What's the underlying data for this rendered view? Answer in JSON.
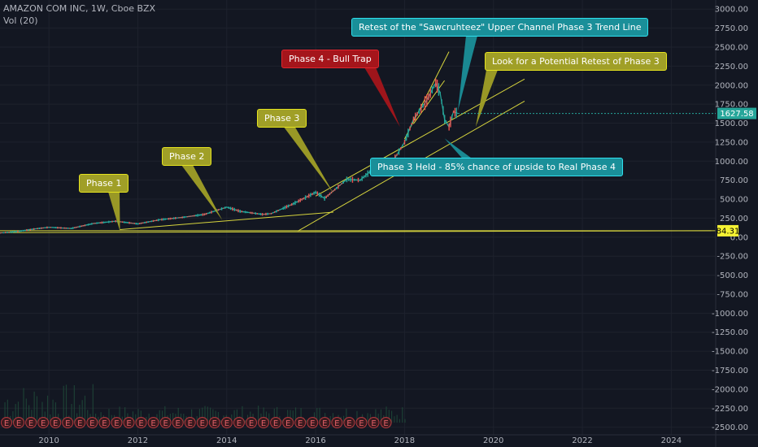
{
  "header": {
    "symbol_line": "AMAZON COM INC, 1W, Cboe BZX",
    "volume_line": "Vol (20)"
  },
  "chart_data": {
    "type": "line",
    "title": "AMAZON COM INC, 1W, Cboe BZX",
    "ylim": [
      -2600,
      3120
    ],
    "xlim": [
      2008.9,
      2025.0
    ],
    "y_ticks": [
      3000,
      2750,
      2500,
      2250,
      2000,
      1750,
      1500,
      1250,
      1000,
      750,
      500,
      250,
      0,
      -250,
      -500,
      -750,
      -1000,
      -1250,
      -1500,
      -1750,
      -2000,
      -2250,
      -2500
    ],
    "y_tick_labels": [
      "3000.00",
      "2750.00",
      "2500.00",
      "2250.00",
      "2000.00",
      "1750.00",
      "1500.00",
      "1250.00",
      "1000.00",
      "750.00",
      "500.00",
      "250.00",
      "0.00",
      "-250.00",
      "-500.00",
      "-750.00",
      "-1000.00",
      "-1250.00",
      "-1500.00",
      "-1750.00",
      "-2000.00",
      "-2250.00",
      "-2500.00"
    ],
    "x_ticks": [
      2010,
      2012,
      2014,
      2016,
      2018,
      2020,
      2022,
      2024
    ],
    "x_tick_labels": [
      "2010",
      "2012",
      "2014",
      "2016",
      "2018",
      "2020",
      "2022",
      "2024"
    ],
    "grid": true,
    "series": [
      {
        "values": [
          [
            2008.9,
            55
          ],
          [
            2009.3,
            75
          ],
          [
            2009.7,
            110
          ],
          [
            2010.0,
            130
          ],
          [
            2010.5,
            115
          ],
          [
            2011.0,
            180
          ],
          [
            2011.5,
            210
          ],
          [
            2012.0,
            175
          ],
          [
            2012.5,
            230
          ],
          [
            2013.0,
            260
          ],
          [
            2013.5,
            300
          ],
          [
            2014.0,
            395
          ],
          [
            2014.3,
            340
          ],
          [
            2014.8,
            300
          ],
          [
            2015.0,
            310
          ],
          [
            2015.5,
            440
          ],
          [
            2016.0,
            590
          ],
          [
            2016.2,
            510
          ],
          [
            2016.7,
            760
          ],
          [
            2017.0,
            750
          ],
          [
            2017.3,
            900
          ],
          [
            2017.7,
            960
          ],
          [
            2018.0,
            1250
          ],
          [
            2018.2,
            1550
          ],
          [
            2018.5,
            1800
          ],
          [
            2018.7,
            2030
          ],
          [
            2018.8,
            1900
          ],
          [
            2018.9,
            1550
          ],
          [
            2019.0,
            1450
          ],
          [
            2019.1,
            1650
          ],
          [
            2019.2,
            1627.58
          ]
        ]
      }
    ],
    "last_price": "1627.58",
    "horizontal_level": "84.31",
    "volume_range": [
      2009.0,
      2018.0
    ],
    "earnings_marker": "E",
    "earnings_count": 32,
    "trend_lines": [
      {
        "from": [
          2008.9,
          60
        ],
        "to": [
          2024.9,
          84.31
        ],
        "color": "#d6d43d"
      },
      {
        "from": [
          2011.6,
          100
        ],
        "to": [
          2016.4,
          330
        ],
        "color": "#d6d43d"
      },
      {
        "from": [
          2015.6,
          80
        ],
        "to": [
          2020.7,
          1790
        ],
        "color": "#d6d43d"
      },
      {
        "from": [
          2016.0,
          540
        ],
        "to": [
          2020.7,
          2080
        ],
        "color": "#d6d43d"
      },
      {
        "from": [
          2018.0,
          1290
        ],
        "to": [
          2019.0,
          2440
        ],
        "color": "#d6d43d"
      },
      {
        "from": [
          2018.2,
          1490
        ],
        "to": [
          2018.9,
          2060
        ],
        "color": "#d6d43d"
      }
    ],
    "annotations": [
      {
        "text": "Phase 1",
        "style": "yellow",
        "pointer_to": [
          2011.6,
          75
        ]
      },
      {
        "text": "Phase 2",
        "style": "yellow",
        "pointer_to": [
          2013.9,
          225
        ]
      },
      {
        "text": "Phase 3",
        "style": "yellow",
        "pointer_to": [
          2016.4,
          580
        ]
      },
      {
        "text": "Phase 4 - Bull Trap",
        "style": "red",
        "pointer_to": [
          2017.9,
          1450
        ]
      },
      {
        "text": "Retest of the  \"Sawcruhteez\" Upper Channel Phase 3 Trend Line",
        "style": "cyan",
        "pointer_to": [
          2019.2,
          1660
        ]
      },
      {
        "text": "Look for a Potential Retest of Phase 3",
        "style": "yellow",
        "pointer_to": [
          2019.6,
          1450
        ]
      },
      {
        "text": "Phase 3 Held - 85% chance of upside to Real Phase 4",
        "style": "cyan",
        "pointer_to": [
          2018.9,
          1300
        ]
      }
    ]
  }
}
